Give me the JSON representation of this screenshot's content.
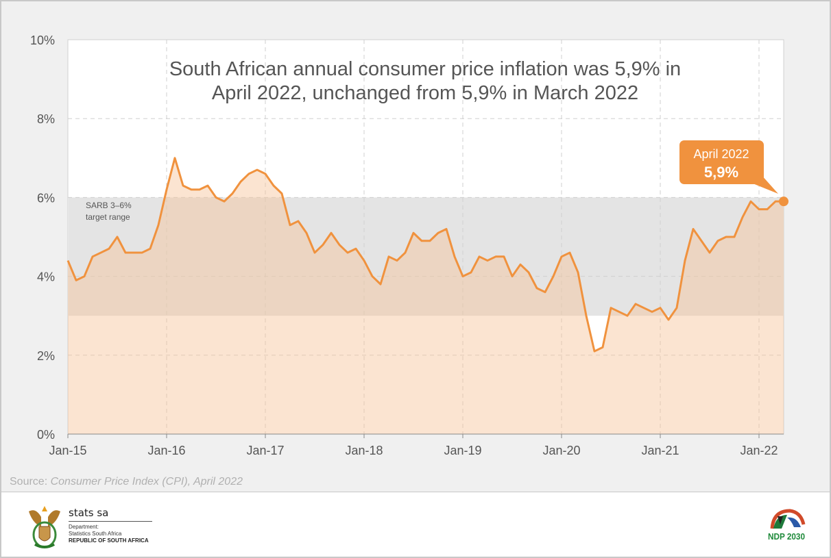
{
  "chart_data": {
    "type": "line",
    "title": "South African annual consumer price inflation was 5,9% in April 2022, unchanged from 5,9% in March 2022",
    "title_lines": [
      "South African annual consumer price inflation was 5,9% in",
      "April 2022, unchanged from 5,9% in March 2022"
    ],
    "xlabel": "",
    "ylabel": "",
    "ylim": [
      0,
      10
    ],
    "y_ticks": [
      "0%",
      "2%",
      "4%",
      "6%",
      "8%",
      "10%"
    ],
    "y_tick_values": [
      0,
      2,
      4,
      6,
      8,
      10
    ],
    "x_ticks": [
      "Jan-15",
      "Jan-16",
      "Jan-17",
      "Jan-18",
      "Jan-19",
      "Jan-20",
      "Jan-21",
      "Jan-22"
    ],
    "x_start": "Jan-15",
    "x_end": "Apr-22",
    "grid": true,
    "target_band": {
      "low": 3,
      "high": 6,
      "label_lines": [
        "SARB 3–6%",
        "target range"
      ],
      "color": "#e4e4e4"
    },
    "series": [
      {
        "color": "#f0923e",
        "fill": "#f7c39a",
        "values": [
          4.4,
          3.9,
          4.0,
          4.5,
          4.6,
          4.7,
          5.0,
          4.6,
          4.6,
          4.6,
          4.7,
          5.3,
          6.2,
          7.0,
          6.3,
          6.2,
          6.2,
          6.3,
          6.0,
          5.9,
          6.1,
          6.4,
          6.6,
          6.7,
          6.6,
          6.3,
          6.1,
          5.3,
          5.4,
          5.1,
          4.6,
          4.8,
          5.1,
          4.8,
          4.6,
          4.7,
          4.4,
          4.0,
          3.8,
          4.5,
          4.4,
          4.6,
          5.1,
          4.9,
          4.9,
          5.1,
          5.2,
          4.5,
          4.0,
          4.1,
          4.5,
          4.4,
          4.5,
          4.5,
          4.0,
          4.3,
          4.1,
          3.7,
          3.6,
          4.0,
          4.5,
          4.6,
          4.1,
          3.0,
          2.1,
          2.2,
          3.2,
          3.1,
          3.0,
          3.3,
          3.2,
          3.1,
          3.2,
          2.9,
          3.2,
          4.4,
          5.2,
          4.9,
          4.6,
          4.9,
          5.0,
          5.0,
          5.5,
          5.9,
          5.7,
          5.7,
          5.9,
          5.9
        ]
      }
    ],
    "annotation": {
      "label": "April 2022",
      "value": "5,9%",
      "color": "#f0923e"
    }
  },
  "source": {
    "prefix": "Source: ",
    "text": "Consumer Price Index (CPI), April 2022"
  },
  "footer": {
    "org_name": "stats sa",
    "dept_line1": "Department:",
    "dept_line2": "Statistics South Africa",
    "country": "REPUBLIC OF SOUTH AFRICA",
    "right_logo_text": "NDP 2030"
  }
}
